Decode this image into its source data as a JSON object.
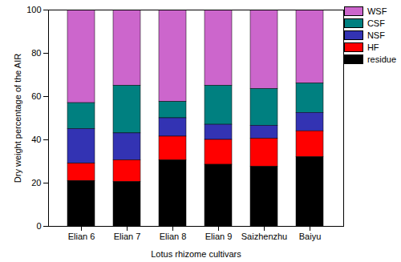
{
  "chart_data": {
    "type": "bar",
    "stacked": true,
    "categories": [
      "Elian 6",
      "Elian 7",
      "Elian 8",
      "Elian 9",
      "Saizhenzhu",
      "Baiyu"
    ],
    "x_label": "Lotus rhizome cultivars",
    "y_label": "Dry weight percentage of the AIR",
    "ylim": [
      0,
      100
    ],
    "yticks": [
      0,
      20,
      40,
      60,
      80,
      100
    ],
    "legend": "right",
    "series": [
      {
        "name": "WSF",
        "color": "#cc66cc",
        "values": [
          43,
          35,
          42.5,
          35,
          36.5,
          34
        ]
      },
      {
        "name": "CSF",
        "color": "#008080",
        "values": [
          12,
          22,
          7.5,
          18,
          17,
          13.5
        ]
      },
      {
        "name": "NSF",
        "color": "#3333b3",
        "values": [
          16,
          12.5,
          8.5,
          7,
          6,
          8.5
        ]
      },
      {
        "name": "HF",
        "color": "#ff0000",
        "values": [
          8,
          10,
          11,
          11.5,
          13,
          12
        ]
      },
      {
        "name": "residue",
        "color": "#000000",
        "values": [
          21,
          20.5,
          30.5,
          28.5,
          27.5,
          32
        ]
      }
    ]
  }
}
